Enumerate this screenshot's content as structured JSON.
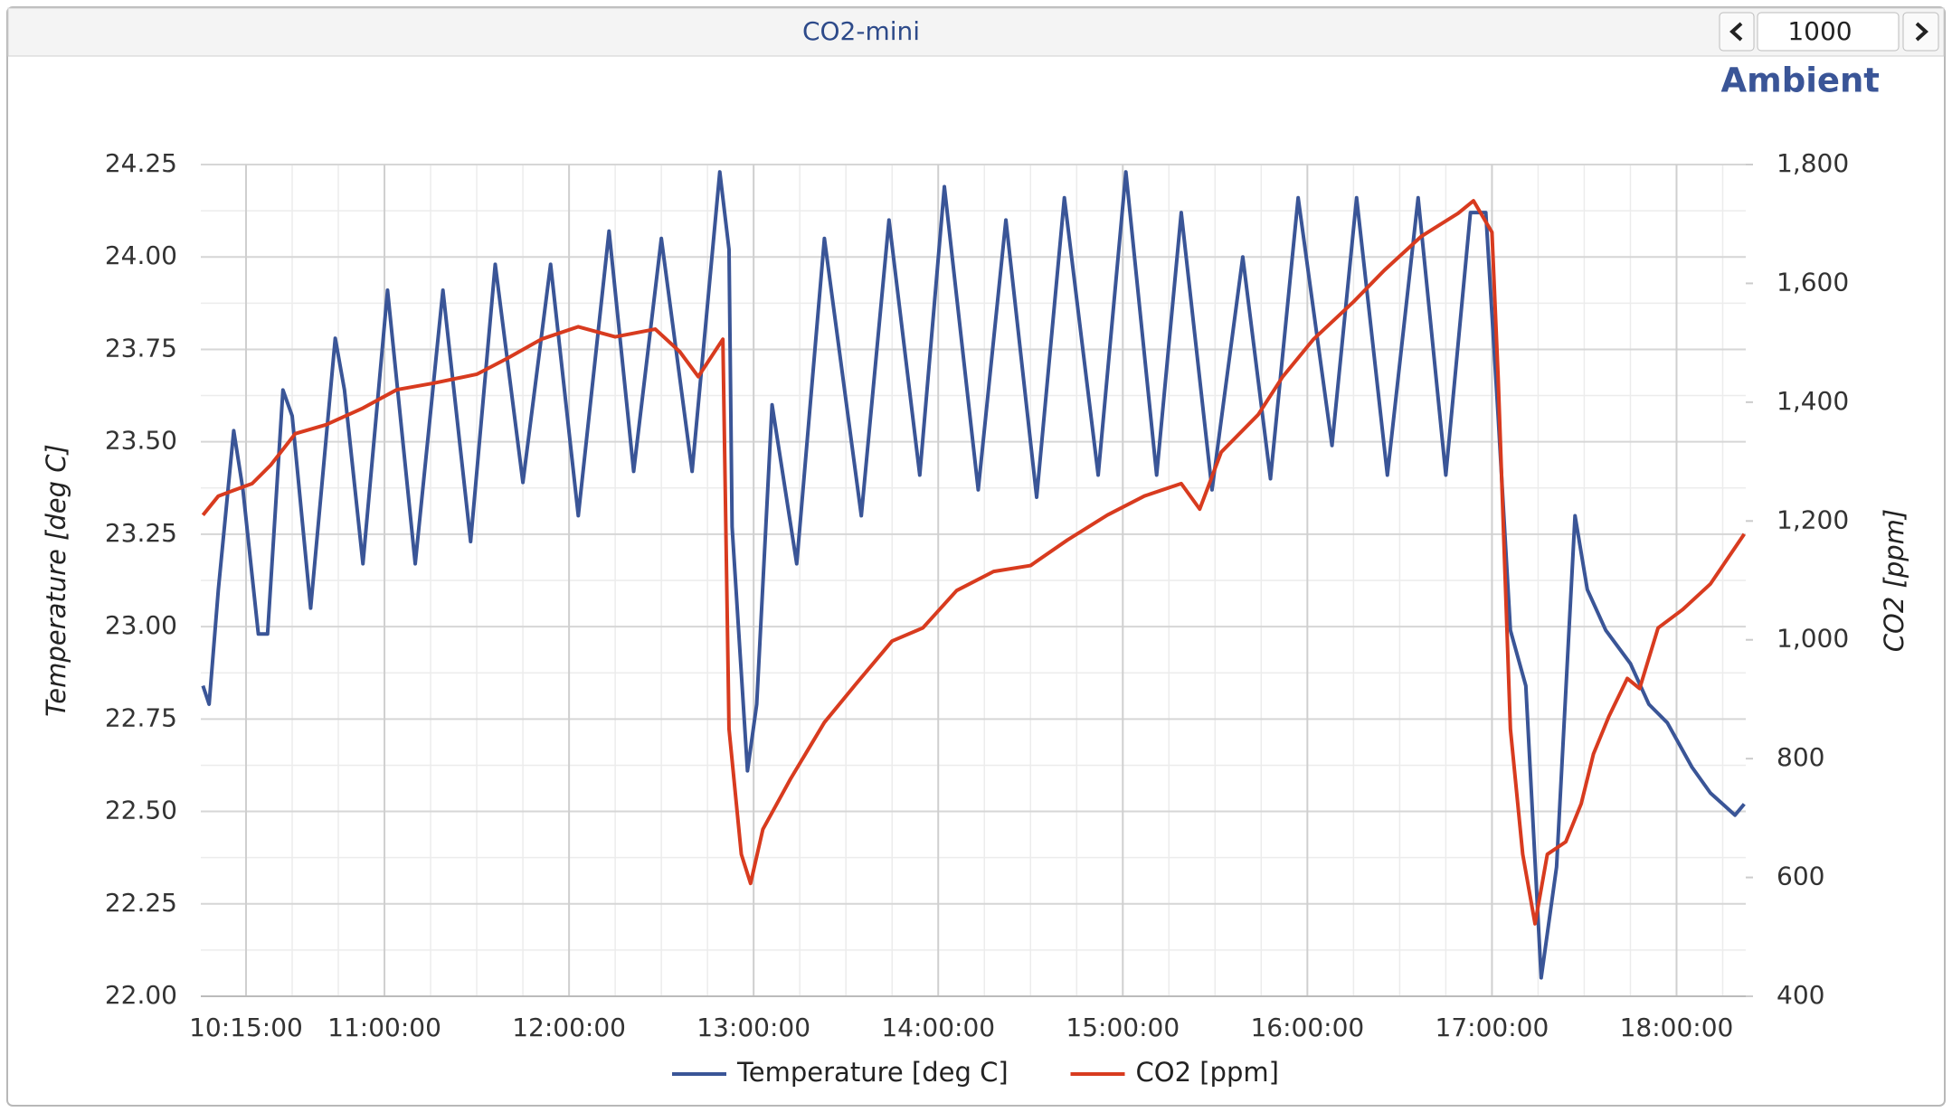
{
  "header": {
    "title": "CO2-mini",
    "page_size": "1000"
  },
  "chart_data": {
    "type": "line",
    "subtitle": "Ambient",
    "ylabel": "Temperature [deg C]",
    "y2label": "CO2 [ppm]",
    "xlim": [
      "10:00:18",
      "18:22:30"
    ],
    "xticks": [
      "10:15:00",
      "11:00:00",
      "12:00:00",
      "13:00:00",
      "14:00:00",
      "15:00:00",
      "16:00:00",
      "17:00:00",
      "18:00:00"
    ],
    "ylim": [
      22,
      24.25
    ],
    "yticks": [
      {
        "value": 22,
        "label": "22.00"
      },
      22.25,
      {
        "value": 22.5,
        "label": "22.50"
      },
      22.75,
      {
        "value": 23,
        "label": "23.00"
      },
      23.25,
      {
        "value": 23.5,
        "label": "23.50"
      },
      23.75,
      {
        "value": 24,
        "label": "24.00"
      },
      24.25
    ],
    "y2lim": [
      400,
      1800
    ],
    "y2ticks": [
      400,
      600,
      800,
      {
        "value": 1000,
        "label": "1,000"
      },
      {
        "value": 1200,
        "label": "1,200"
      },
      {
        "value": 1400,
        "label": "1,400"
      },
      {
        "value": 1600,
        "label": "1,600"
      },
      {
        "value": 1800,
        "label": "1,800"
      }
    ],
    "grid": true,
    "legend": "bottom",
    "series": [
      {
        "name": "Temperature [deg C]",
        "color": "#3a5597",
        "x": [
          "10:01:00",
          "10:03:00",
          "10:06:00",
          "10:11:00",
          "10:14:00",
          "10:19:00",
          "10:22:00",
          "10:27:00",
          "10:30:00",
          "10:36:00",
          "10:44:00",
          "10:47:00",
          "10:53:00",
          "11:01:00",
          "11:10:00",
          "11:19:00",
          "11:28:00",
          "11:36:00",
          "11:45:00",
          "11:54:00",
          "12:03:00",
          "12:13:00",
          "12:21:00",
          "12:30:00",
          "12:40:00",
          "12:49:00",
          "12:52:00",
          "12:53:00",
          "12:58:00",
          "13:01:00",
          "13:06:00",
          "13:14:00",
          "13:23:00",
          "13:35:00",
          "13:44:00",
          "13:54:00",
          "14:02:00",
          "14:13:00",
          "14:22:00",
          "14:32:00",
          "14:41:00",
          "14:52:00",
          "15:01:00",
          "15:11:00",
          "15:19:00",
          "15:29:00",
          "15:39:00",
          "15:48:00",
          "15:57:00",
          "16:08:00",
          "16:16:00",
          "16:26:00",
          "16:36:00",
          "16:45:00",
          "16:53:00",
          "16:58:00",
          "17:02:00",
          "17:06:00",
          "17:11:00",
          "17:16:00",
          "17:21:00",
          "17:27:00",
          "17:31:00",
          "17:37:00",
          "17:45:00",
          "17:51:00",
          "17:57:00",
          "18:05:00",
          "18:11:00",
          "18:19:00",
          "18:22:00"
        ],
        "values": [
          22.84,
          22.79,
          23.1,
          23.53,
          23.37,
          22.98,
          22.98,
          23.64,
          23.57,
          23.05,
          23.78,
          23.64,
          23.17,
          23.91,
          23.17,
          23.91,
          23.23,
          23.98,
          23.39,
          23.98,
          23.3,
          24.07,
          23.42,
          24.05,
          23.42,
          24.23,
          24.02,
          23.27,
          22.61,
          22.79,
          23.6,
          23.17,
          24.05,
          23.3,
          24.1,
          23.41,
          24.19,
          23.37,
          24.1,
          23.35,
          24.16,
          23.41,
          24.23,
          23.41,
          24.12,
          23.37,
          24.0,
          23.4,
          24.16,
          23.49,
          24.16,
          23.41,
          24.16,
          23.41,
          24.12,
          24.12,
          23.57,
          22.99,
          22.84,
          22.05,
          22.35,
          23.3,
          23.1,
          22.99,
          22.9,
          22.79,
          22.74,
          22.62,
          22.55,
          22.49,
          22.52
        ]
      },
      {
        "name": "CO2 [ppm]",
        "color": "#d83b1f",
        "axis": "y2",
        "x": [
          "10:01:00",
          "10:06:00",
          "10:17:00",
          "10:23:00",
          "10:31:00",
          "10:41:00",
          "10:53:00",
          "11:04:00",
          "11:16:00",
          "11:30:00",
          "11:40:00",
          "11:51:00",
          "12:03:00",
          "12:15:00",
          "12:28:00",
          "12:36:00",
          "12:42:00",
          "12:50:00",
          "12:52:00",
          "12:56:00",
          "12:59:00",
          "13:03:00",
          "13:12:00",
          "13:23:00",
          "13:33:00",
          "13:45:00",
          "13:55:00",
          "14:06:00",
          "14:18:00",
          "14:30:00",
          "14:42:00",
          "14:55:00",
          "15:07:00",
          "15:19:00",
          "15:25:00",
          "15:32:00",
          "15:44:00",
          "15:52:00",
          "16:02:00",
          "16:15:00",
          "16:25:00",
          "16:37:00",
          "16:49:00",
          "16:54:00",
          "17:00:00",
          "17:02:00",
          "17:06:00",
          "17:10:00",
          "17:14:00",
          "17:18:00",
          "17:24:00",
          "17:29:00",
          "17:33:00",
          "17:38:00",
          "17:44:00",
          "17:48:00",
          "17:54:00",
          "18:02:00",
          "18:11:00",
          "18:22:00"
        ],
        "values": [
          1210,
          1242,
          1263,
          1294,
          1347,
          1362,
          1390,
          1421,
          1432,
          1447,
          1474,
          1506,
          1527,
          1510,
          1523,
          1485,
          1443,
          1506,
          850,
          639,
          590,
          681,
          766,
          861,
          924,
          998,
          1020,
          1083,
          1115,
          1125,
          1168,
          1210,
          1242,
          1263,
          1220,
          1316,
          1379,
          1443,
          1506,
          1569,
          1622,
          1679,
          1718,
          1739,
          1686,
          1443,
          850,
          639,
          522,
          639,
          660,
          724,
          808,
          871,
          935,
          918,
          1020,
          1051,
          1094,
          1178
        ]
      }
    ]
  }
}
